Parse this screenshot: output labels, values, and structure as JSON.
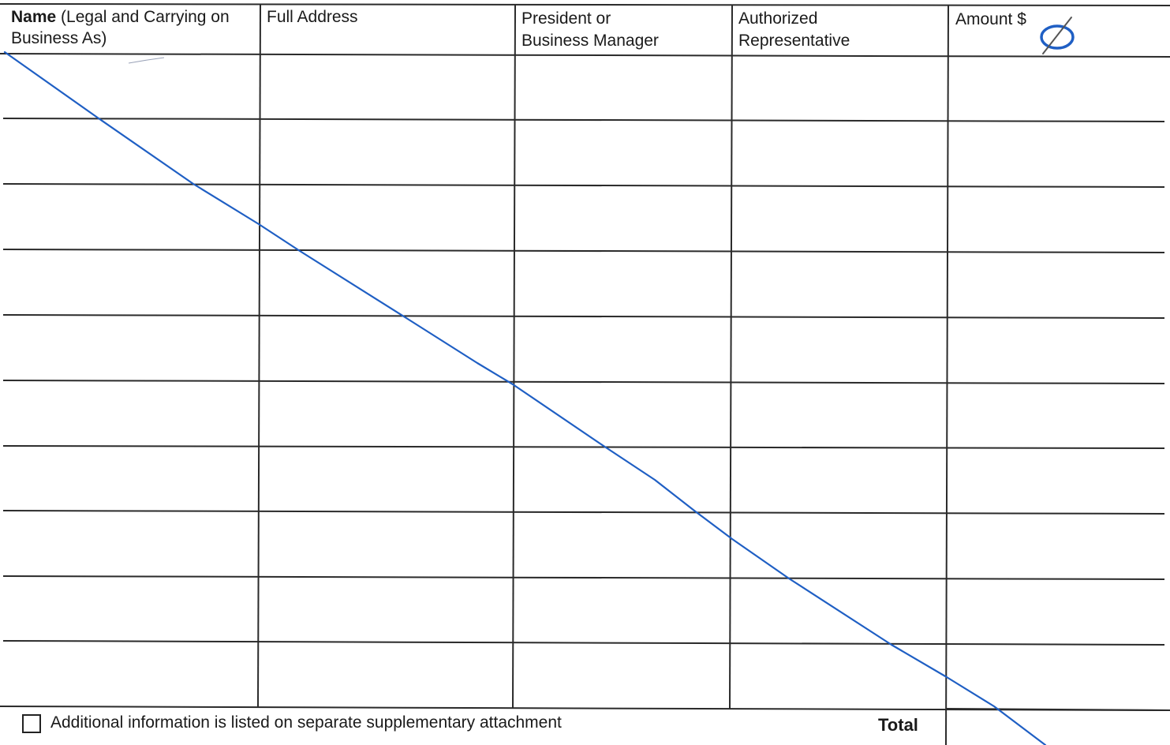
{
  "table": {
    "headers": {
      "name_bold": "Name",
      "name_rest": " (Legal and Carrying on",
      "name_line2": "Business As)",
      "address": "Full Address",
      "president_line1": "President or",
      "president_line2": "Business Manager",
      "authorized_line1": "Authorized",
      "authorized_line2": "Representative",
      "amount": "Amount $"
    },
    "row_count": 10,
    "rows_filled": false
  },
  "footer": {
    "checkbox_checked": false,
    "supplementary_text": "Additional information is listed on separate supplementary attachment",
    "total_label": "Total",
    "total_value": ""
  },
  "handwriting": {
    "strike_line_color": "#1f5fc4",
    "amount_mark": "Ø",
    "amount_mark_color": "#1f5fc4"
  }
}
